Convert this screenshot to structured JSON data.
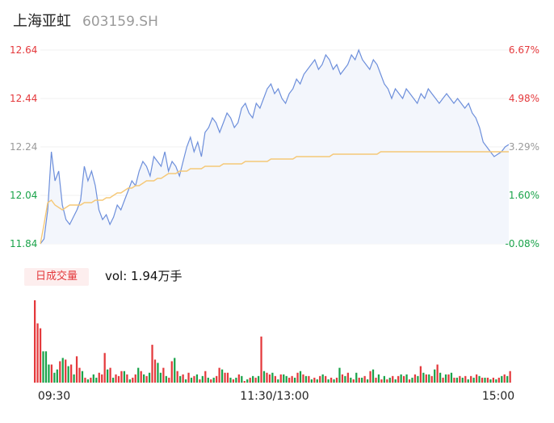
{
  "header": {
    "name": "上海亚虹",
    "code": "603159.SH"
  },
  "colors": {
    "price_line": "#6d8fdb",
    "avg_line": "#f5c877",
    "up": "#e4393c",
    "down": "#1aa34a",
    "neutral": "#9a9a9a",
    "area_fill": "#f3f6fc"
  },
  "chart_data": {
    "type": "line",
    "title": "",
    "y_left_ticks": [
      "12.64",
      "12.44",
      "12.24",
      "12.04",
      "11.84"
    ],
    "y_right_ticks": [
      "6.67%",
      "4.98%",
      "3.29%",
      "1.60%",
      "-0.08%"
    ],
    "x_ticks": [
      "09:30",
      "11:30/13:00",
      "15:00"
    ],
    "ylim": [
      11.84,
      12.64
    ],
    "series": [
      {
        "values": [
          11.84,
          11.86,
          11.98,
          12.22,
          12.1,
          12.14,
          12.0,
          11.94,
          11.92,
          11.95,
          11.98,
          12.02,
          12.16,
          12.1,
          12.14,
          12.08,
          11.98,
          11.94,
          11.96,
          11.92,
          11.95,
          12.0,
          11.98,
          12.02,
          12.06,
          12.1,
          12.08,
          12.14,
          12.18,
          12.16,
          12.12,
          12.2,
          12.18,
          12.16,
          12.22,
          12.14,
          12.18,
          12.16,
          12.12,
          12.18,
          12.24,
          12.28,
          12.22,
          12.26,
          12.2,
          12.3,
          12.32,
          12.36,
          12.34,
          12.3,
          12.34,
          12.38,
          12.36,
          12.32,
          12.34,
          12.4,
          12.42,
          12.38,
          12.36,
          12.42,
          12.4,
          12.44,
          12.48,
          12.5,
          12.46,
          12.48,
          12.44,
          12.42,
          12.46,
          12.48,
          12.52,
          12.5,
          12.54,
          12.56,
          12.58,
          12.6,
          12.56,
          12.58,
          12.62,
          12.6,
          12.56,
          12.58,
          12.54,
          12.56,
          12.58,
          12.62,
          12.6,
          12.64,
          12.6,
          12.58,
          12.56,
          12.6,
          12.58,
          12.54,
          12.5,
          12.48,
          12.44,
          12.48,
          12.46,
          12.44,
          12.48,
          12.46,
          12.44,
          12.42,
          12.46,
          12.44,
          12.48,
          12.46,
          12.44,
          12.42,
          12.44,
          12.46,
          12.44,
          12.42,
          12.44,
          12.42,
          12.4,
          12.42,
          12.38,
          12.36,
          12.32,
          12.26,
          12.24,
          12.22,
          12.2,
          12.21,
          12.22,
          12.24,
          12.25
        ]
      },
      {
        "values": [
          11.84,
          11.92,
          12.01,
          12.02,
          12.0,
          11.99,
          11.98,
          11.99,
          12.0,
          12.0,
          12.0,
          12.0,
          12.01,
          12.01,
          12.01,
          12.02,
          12.02,
          12.02,
          12.03,
          12.03,
          12.04,
          12.05,
          12.05,
          12.06,
          12.07,
          12.07,
          12.08,
          12.08,
          12.09,
          12.1,
          12.1,
          12.1,
          12.11,
          12.11,
          12.12,
          12.13,
          12.13,
          12.13,
          12.14,
          12.14,
          12.14,
          12.15,
          12.15,
          12.15,
          12.15,
          12.16,
          12.16,
          12.16,
          12.16,
          12.16,
          12.17,
          12.17,
          12.17,
          12.17,
          12.17,
          12.17,
          12.18,
          12.18,
          12.18,
          12.18,
          12.18,
          12.18,
          12.18,
          12.19,
          12.19,
          12.19,
          12.19,
          12.19,
          12.19,
          12.19,
          12.2,
          12.2,
          12.2,
          12.2,
          12.2,
          12.2,
          12.2,
          12.2,
          12.2,
          12.2,
          12.21,
          12.21,
          12.21,
          12.21,
          12.21,
          12.21,
          12.21,
          12.21,
          12.21,
          12.21,
          12.21,
          12.21,
          12.21,
          12.22,
          12.22,
          12.22,
          12.22,
          12.22,
          12.22,
          12.22,
          12.22,
          12.22,
          12.22,
          12.22,
          12.22,
          12.22,
          12.22,
          12.22,
          12.22,
          12.22,
          12.22,
          12.22,
          12.22,
          12.22,
          12.22,
          12.22,
          12.22,
          12.22,
          12.22,
          12.22,
          12.22,
          12.22,
          12.22,
          12.22,
          12.22,
          12.22,
          12.22,
          12.22,
          12.22
        ]
      }
    ],
    "volume": {
      "label": "日成交量",
      "text": "vol: 1.94万手",
      "values": [
        100,
        72,
        66,
        38,
        38,
        22,
        22,
        12,
        16,
        26,
        30,
        28,
        20,
        22,
        10,
        32,
        18,
        14,
        6,
        4,
        6,
        10,
        6,
        12,
        10,
        36,
        16,
        18,
        6,
        10,
        8,
        14,
        14,
        10,
        4,
        6,
        10,
        18,
        14,
        10,
        8,
        12,
        46,
        28,
        24,
        12,
        18,
        8,
        6,
        26,
        30,
        14,
        8,
        10,
        4,
        12,
        6,
        8,
        10,
        4,
        8,
        14,
        6,
        4,
        6,
        8,
        18,
        16,
        12,
        12,
        6,
        4,
        6,
        10,
        8,
        2,
        4,
        6,
        8,
        6,
        8,
        56,
        14,
        12,
        10,
        12,
        8,
        4,
        10,
        10,
        8,
        6,
        8,
        6,
        12,
        14,
        10,
        8,
        8,
        4,
        6,
        4,
        8,
        10,
        8,
        4,
        6,
        4,
        6,
        18,
        10,
        8,
        12,
        6,
        4,
        12,
        6,
        6,
        8,
        4,
        14,
        16,
        6,
        10,
        4,
        8,
        4,
        6,
        8,
        4,
        8,
        10,
        8,
        10,
        4,
        6,
        10,
        8,
        20,
        12,
        10,
        10,
        8,
        16,
        22,
        12,
        6,
        10,
        10,
        12,
        6,
        6,
        8,
        6,
        8,
        4,
        8,
        6,
        10,
        8,
        6,
        6,
        6,
        4,
        6,
        4,
        6,
        8,
        10,
        8,
        14
      ],
      "colors": [
        "up",
        "up",
        "up",
        "down",
        "down",
        "down",
        "up",
        "down",
        "down",
        "up",
        "down",
        "up",
        "down",
        "up",
        "down",
        "up",
        "up",
        "down",
        "up",
        "down",
        "up",
        "down",
        "down",
        "up",
        "up",
        "up",
        "down",
        "up",
        "down",
        "up",
        "up",
        "up",
        "down",
        "up",
        "down",
        "up",
        "up",
        "down",
        "up",
        "down",
        "up",
        "down",
        "up",
        "up",
        "down",
        "down",
        "up",
        "down",
        "up",
        "up",
        "down",
        "up",
        "down",
        "up",
        "down",
        "up",
        "down",
        "up",
        "down",
        "up",
        "down",
        "up",
        "down",
        "up",
        "down",
        "up",
        "up",
        "down",
        "up",
        "up",
        "down",
        "up",
        "down",
        "up",
        "down",
        "up",
        "down",
        "up",
        "down",
        "up",
        "down",
        "up",
        "down",
        "up",
        "up",
        "down",
        "up",
        "down",
        "up",
        "down",
        "down",
        "up",
        "up",
        "down",
        "up",
        "down",
        "up",
        "down",
        "up",
        "down",
        "up",
        "down",
        "up",
        "down",
        "up",
        "down",
        "up",
        "down",
        "up",
        "down",
        "up",
        "down",
        "up",
        "down",
        "up",
        "down",
        "up",
        "down",
        "up",
        "down",
        "up",
        "down",
        "up",
        "down",
        "up",
        "down",
        "up",
        "down",
        "up",
        "down",
        "up",
        "down",
        "up",
        "down",
        "up",
        "down",
        "up",
        "down",
        "up",
        "down",
        "up",
        "down",
        "up",
        "down",
        "up",
        "down",
        "up",
        "down",
        "up",
        "down",
        "up",
        "down",
        "up",
        "down",
        "up",
        "down",
        "up",
        "down",
        "up",
        "down",
        "up",
        "down",
        "up",
        "down",
        "up",
        "down",
        "up",
        "down",
        "up",
        "down",
        "up",
        "up"
      ]
    }
  }
}
